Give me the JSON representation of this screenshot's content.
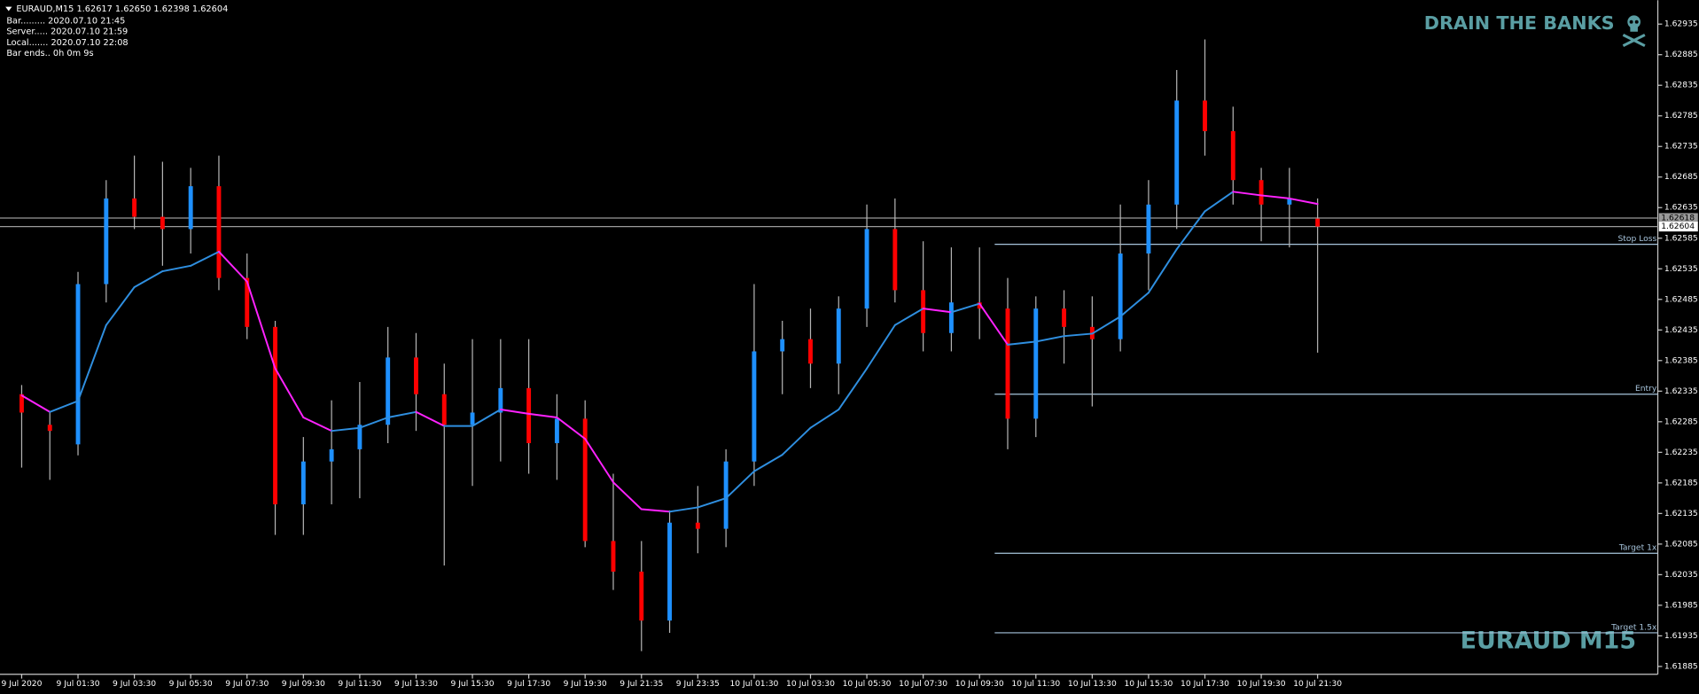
{
  "chart_data": {
    "type": "candlestick",
    "header": "EURAUD,M15  1.62617 1.62650 1.62398 1.62604",
    "info_lines": [
      "Bar......... 2020.07.10 21:45",
      "Server..... 2020.07.10 21:59",
      "Local....... 2020.07.10 22:08",
      "Bar ends.. 0h 0m 9s"
    ],
    "watermark_top": "DRAIN THE BANKS",
    "watermark_bottom": "EURAUD M15",
    "categories": [
      "9 Jul 2020",
      null,
      "9 Jul 01:30",
      null,
      "9 Jul 03:30",
      null,
      "9 Jul 05:30",
      null,
      "9 Jul 07:30",
      null,
      "9 Jul 09:30",
      null,
      "9 Jul 11:30",
      null,
      "9 Jul 13:30",
      null,
      "9 Jul 15:30",
      null,
      "9 Jul 17:30",
      null,
      "9 Jul 19:30",
      null,
      "9 Jul 21:35",
      null,
      "9 Jul 23:35",
      null,
      "10 Jul 01:30",
      null,
      "10 Jul 03:30",
      null,
      "10 Jul 05:30",
      null,
      "10 Jul 07:30",
      null,
      "10 Jul 09:30",
      null,
      "10 Jul 11:30",
      null,
      "10 Jul 13:30",
      null,
      "10 Jul 15:30",
      null,
      "10 Jul 17:30",
      null,
      "10 Jul 19:30",
      null,
      "10 Jul 21:30"
    ],
    "open": [
      1.6233,
      1.6228,
      1.62248,
      1.6251,
      1.6265,
      1.6262,
      1.626,
      1.6267,
      1.6252,
      1.6244,
      1.6215,
      1.6222,
      1.6224,
      1.6228,
      1.6239,
      1.6233,
      1.6228,
      1.623,
      1.6234,
      1.6225,
      1.6229,
      1.6209,
      1.6204,
      1.6196,
      1.6212,
      1.6211,
      1.6222,
      1.624,
      1.6242,
      1.6238,
      1.6247,
      1.626,
      1.625,
      1.6243,
      1.6248,
      1.6247,
      1.6229,
      1.6247,
      1.6244,
      1.6242,
      1.6256,
      1.6264,
      1.6281,
      1.6276,
      1.6268,
      1.6264,
      1.62617
    ],
    "high": [
      1.62345,
      1.623,
      1.6253,
      1.6268,
      1.6272,
      1.6271,
      1.627,
      1.6272,
      1.6256,
      1.6245,
      1.6226,
      1.6232,
      1.6235,
      1.6244,
      1.6243,
      1.6238,
      1.6242,
      1.6242,
      1.6242,
      1.6233,
      1.6232,
      1.622,
      1.6209,
      1.6214,
      1.6218,
      1.6224,
      1.6251,
      1.6245,
      1.6247,
      1.6249,
      1.6264,
      1.6265,
      1.6258,
      1.6257,
      1.6257,
      1.6252,
      1.6249,
      1.625,
      1.6249,
      1.6264,
      1.6268,
      1.6286,
      1.6291,
      1.628,
      1.627,
      1.627,
      1.6265
    ],
    "low": [
      1.6221,
      1.6219,
      1.6223,
      1.6248,
      1.626,
      1.6254,
      1.6256,
      1.625,
      1.6242,
      1.621,
      1.621,
      1.6215,
      1.6216,
      1.6225,
      1.6227,
      1.6205,
      1.6218,
      1.6222,
      1.622,
      1.6219,
      1.6208,
      1.6201,
      1.6191,
      1.6194,
      1.6207,
      1.6208,
      1.6218,
      1.6233,
      1.6234,
      1.6233,
      1.6244,
      1.6248,
      1.624,
      1.624,
      1.6242,
      1.6224,
      1.6226,
      1.6238,
      1.6231,
      1.624,
      1.625,
      1.626,
      1.6272,
      1.6264,
      1.6258,
      1.6257,
      1.62398
    ],
    "close": [
      1.623,
      1.6227,
      1.6251,
      1.6265,
      1.6262,
      1.626,
      1.6267,
      1.6252,
      1.6244,
      1.6215,
      1.6222,
      1.6224,
      1.6228,
      1.6239,
      1.6233,
      1.6228,
      1.623,
      1.6234,
      1.6225,
      1.6229,
      1.6209,
      1.6204,
      1.6196,
      1.6212,
      1.6211,
      1.6222,
      1.624,
      1.6242,
      1.6238,
      1.6247,
      1.626,
      1.625,
      1.6243,
      1.6248,
      1.6247,
      1.6229,
      1.6247,
      1.6244,
      1.6242,
      1.6256,
      1.6264,
      1.6281,
      1.6276,
      1.6268,
      1.6264,
      1.6265,
      1.62604
    ],
    "up_color": "#1e90ff",
    "down_color": "#ff0000",
    "wick_color": "#b4b4b4",
    "ma": {
      "values": [
        1.62328,
        1.62301,
        1.62319,
        1.62443,
        1.62505,
        1.62531,
        1.6254,
        1.62563,
        1.62514,
        1.62372,
        1.62292,
        1.6227,
        1.62275,
        1.62292,
        1.62301,
        1.62278,
        1.62278,
        1.62305,
        1.62298,
        1.62292,
        1.62257,
        1.62186,
        1.62142,
        1.62138,
        1.62145,
        1.6216,
        1.62204,
        1.62231,
        1.62275,
        1.62305,
        1.62372,
        1.62443,
        1.6247,
        1.62464,
        1.62478,
        1.62411,
        1.62416,
        1.62425,
        1.62429,
        1.62457,
        1.62496,
        1.62567,
        1.62629,
        1.62661,
        1.62655,
        1.6265,
        1.62641
      ],
      "up_color": "#2f8fe0",
      "down_color": "#ff22ff"
    },
    "levels": [
      {
        "name": "Stop Loss",
        "value": 1.62575
      },
      {
        "name": "Entry",
        "value": 1.6233
      },
      {
        "name": "Target 1x",
        "value": 1.6207
      },
      {
        "name": "Target 1.5x",
        "value": 1.6194
      }
    ],
    "level_color": "#a7c4dc",
    "price_lines": [
      {
        "value": 1.62618,
        "box": "#9a9a9a"
      },
      {
        "value": 1.62604,
        "box": "#ffffff"
      }
    ],
    "ylim": [
      1.61874,
      1.62974
    ],
    "yticks": [
      1.62935,
      1.62885,
      1.62835,
      1.62785,
      1.62735,
      1.62685,
      1.62635,
      1.62585,
      1.62535,
      1.62485,
      1.62435,
      1.62385,
      1.62335,
      1.62285,
      1.62235,
      1.62185,
      1.62135,
      1.62085,
      1.62035,
      1.61985,
      1.61935,
      1.61885
    ]
  }
}
